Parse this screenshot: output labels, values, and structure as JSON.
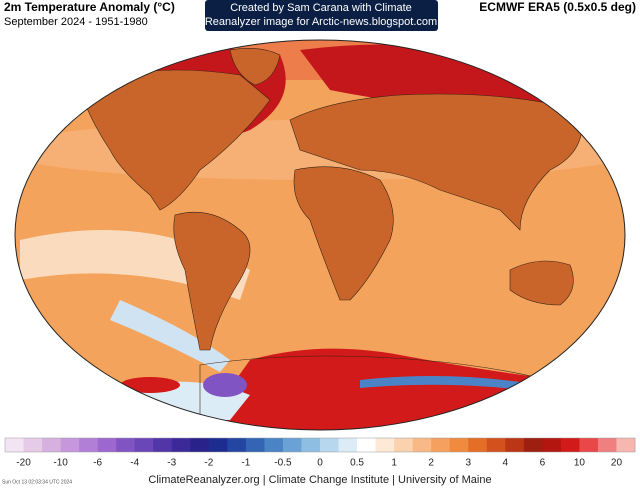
{
  "header": {
    "title": "2m Temperature Anomaly (°C)",
    "subtitle": "September 2024 - 1951-1980",
    "banner": [
      "Created by Sam Carana with Climate",
      "Reanalyzer image for Arctic-news.blogspot.com"
    ],
    "dataset": "ECMWF ERA5 (0.5x0.5 deg)"
  },
  "colorbar": {
    "labels": [
      "-20",
      "-10",
      "-6",
      "-4",
      "-3",
      "-2",
      "-1",
      "-0.5",
      "0",
      "0.5",
      "1",
      "2",
      "3",
      "4",
      "6",
      "10",
      "20"
    ],
    "colors": [
      "#f3e4f3",
      "#e6cbe8",
      "#d6b1e0",
      "#c697dc",
      "#b27fd6",
      "#9c68cf",
      "#8154c4",
      "#6a46b8",
      "#5236a8",
      "#3c2a98",
      "#28228a",
      "#1d2c8f",
      "#2346a2",
      "#3464b4",
      "#4b84c6",
      "#6aa2d6",
      "#8fbee3",
      "#b6d7ee",
      "#dcecf6",
      "#ffffff",
      "#fde9d6",
      "#fbd2ae",
      "#f8b986",
      "#f5a05f",
      "#f08a3e",
      "#e46e26",
      "#d2511c",
      "#bb3614",
      "#9e1f10",
      "#b3160f",
      "#d21a1a",
      "#e84848",
      "#f08080",
      "#f7b6b0"
    ]
  },
  "footer": {
    "credit": "ClimateReanalyzer.org | Climate Change Institute | University of Maine",
    "timestamp": "Sun Oct 13 02:03:34 UTC 2024"
  }
}
